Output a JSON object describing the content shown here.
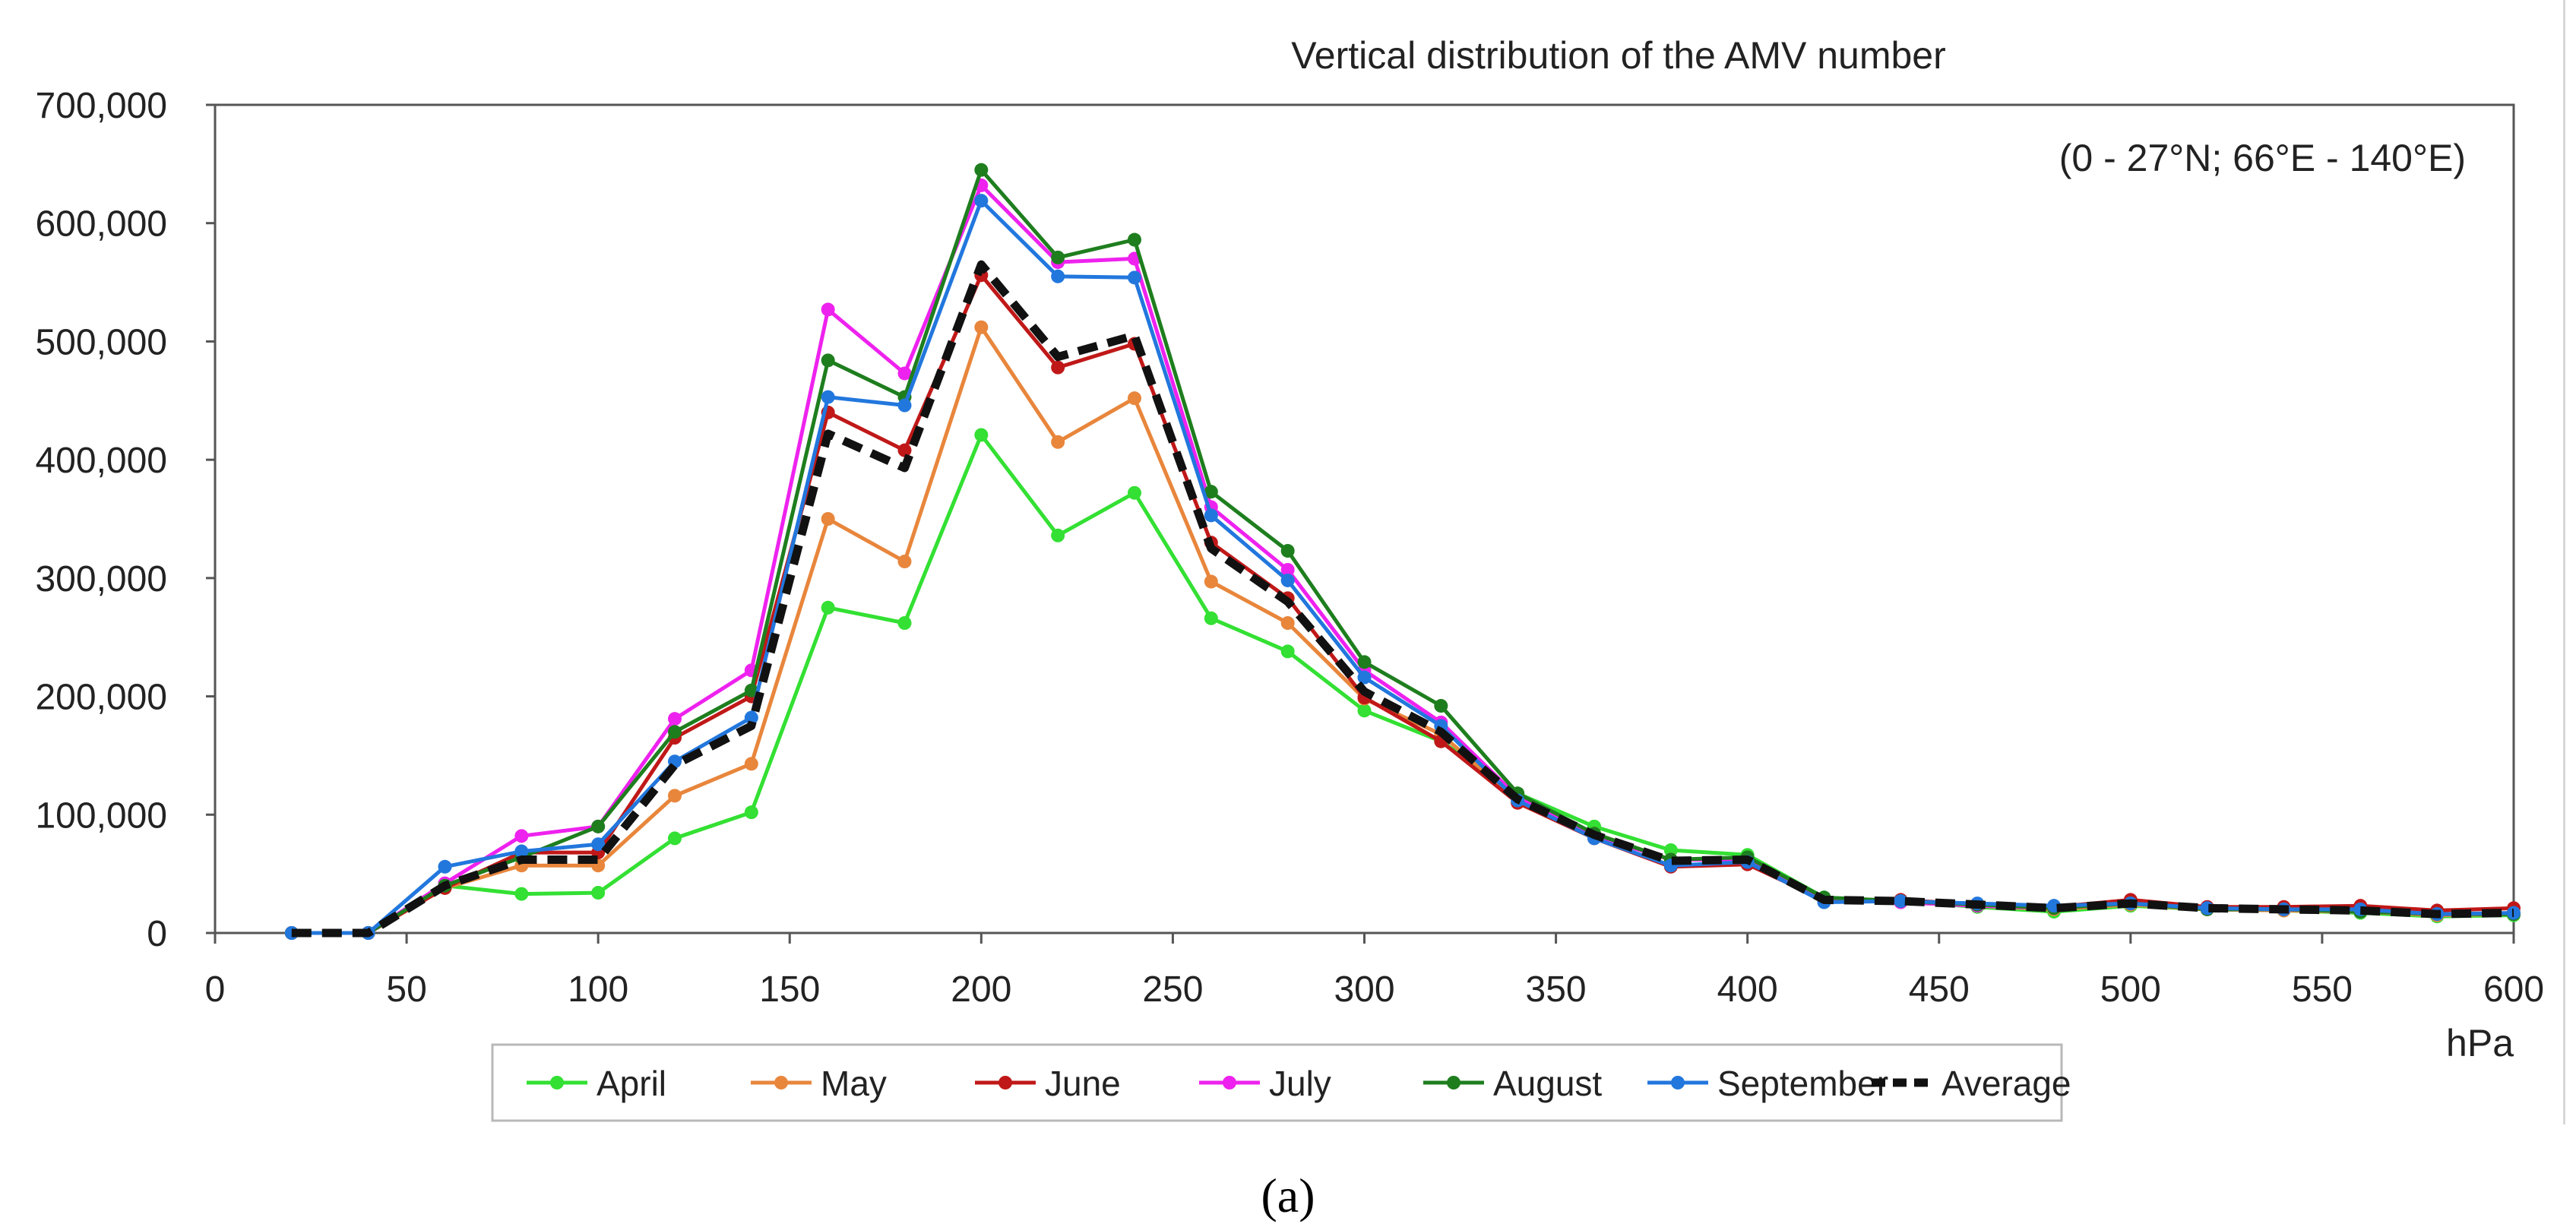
{
  "chart_data": {
    "type": "line",
    "title": "Vertical distribution of the AMV number",
    "annotation": "(0 - 27°N; 66°E - 140°E)",
    "xlabel": "hPa",
    "ylabel": "",
    "xlim": [
      0,
      600
    ],
    "ylim": [
      0,
      700000
    ],
    "x_ticks": [
      0,
      50,
      100,
      150,
      200,
      250,
      300,
      350,
      400,
      450,
      500,
      550,
      600
    ],
    "y_ticks": [
      0,
      100000,
      200000,
      300000,
      400000,
      500000,
      600000,
      700000
    ],
    "x_tick_labels": [
      "0",
      "50",
      "100",
      "150",
      "200",
      "250",
      "300",
      "350",
      "400",
      "450",
      "500",
      "550",
      "600"
    ],
    "y_tick_labels": [
      "0",
      "100,000",
      "200,000",
      "300,000",
      "400,000",
      "500,000",
      "600,000",
      "700,000"
    ],
    "grid": false,
    "legend_position": "bottom",
    "x": [
      20,
      40,
      60,
      80,
      100,
      120,
      140,
      160,
      180,
      200,
      220,
      240,
      260,
      280,
      300,
      320,
      340,
      360,
      380,
      400,
      420,
      440,
      460,
      480,
      500,
      520,
      540,
      560,
      580,
      600
    ],
    "series": [
      {
        "name": "April",
        "color": "#33e033",
        "dashed": false,
        "values": [
          0,
          0,
          40000,
          33000,
          34000,
          80000,
          102000,
          275000,
          262000,
          421000,
          336000,
          372000,
          266000,
          238000,
          188000,
          162000,
          118000,
          90000,
          70000,
          66000,
          30000,
          27000,
          22000,
          18000,
          23000,
          20000,
          19000,
          17000,
          14000,
          15000
        ]
      },
      {
        "name": "May",
        "color": "#e8863c",
        "dashed": false,
        "values": [
          0,
          0,
          38000,
          57000,
          57000,
          116000,
          143000,
          350000,
          314000,
          512000,
          415000,
          452000,
          297000,
          262000,
          198000,
          168000,
          112000,
          84000,
          62000,
          62000,
          28000,
          26000,
          23000,
          20000,
          24000,
          20000,
          19000,
          18000,
          15000,
          16000
        ]
      },
      {
        "name": "June",
        "color": "#c01818",
        "dashed": false,
        "values": [
          0,
          0,
          38000,
          68000,
          68000,
          165000,
          200000,
          440000,
          408000,
          556000,
          478000,
          498000,
          330000,
          283000,
          199000,
          162000,
          110000,
          80000,
          56000,
          58000,
          28000,
          28000,
          24000,
          22000,
          28000,
          22000,
          22000,
          23000,
          19000,
          21000
        ]
      },
      {
        "name": "July",
        "color": "#ee22ee",
        "dashed": false,
        "values": [
          0,
          0,
          42000,
          82000,
          90000,
          181000,
          222000,
          527000,
          473000,
          632000,
          567000,
          570000,
          360000,
          307000,
          222000,
          178000,
          115000,
          82000,
          62000,
          62000,
          28000,
          26000,
          23000,
          21000,
          25000,
          20000,
          20000,
          18000,
          16000,
          16000
        ]
      },
      {
        "name": "August",
        "color": "#1e7e1e",
        "dashed": false,
        "values": [
          0,
          0,
          40000,
          64000,
          90000,
          170000,
          205000,
          484000,
          453000,
          645000,
          571000,
          586000,
          373000,
          323000,
          229000,
          192000,
          118000,
          84000,
          62000,
          64000,
          30000,
          27000,
          24000,
          21000,
          25000,
          20000,
          20000,
          18000,
          16000,
          16000
        ]
      },
      {
        "name": "September",
        "color": "#2277dd",
        "dashed": false,
        "values": [
          0,
          0,
          56000,
          69000,
          75000,
          145000,
          182000,
          453000,
          446000,
          619000,
          555000,
          554000,
          353000,
          298000,
          216000,
          175000,
          112000,
          80000,
          57000,
          60000,
          26000,
          27000,
          25000,
          23000,
          25000,
          21000,
          20000,
          20000,
          16000,
          17000
        ]
      },
      {
        "name": "Average",
        "color": "#111111",
        "dashed": true,
        "values": [
          0,
          0,
          40000,
          62000,
          62000,
          142000,
          175000,
          422000,
          393000,
          565000,
          487000,
          505000,
          325000,
          280000,
          204000,
          170000,
          113000,
          83000,
          61000,
          62000,
          28000,
          27000,
          24000,
          21000,
          25000,
          21000,
          20000,
          19000,
          16000,
          17000
        ]
      }
    ]
  },
  "caption": "(a)"
}
